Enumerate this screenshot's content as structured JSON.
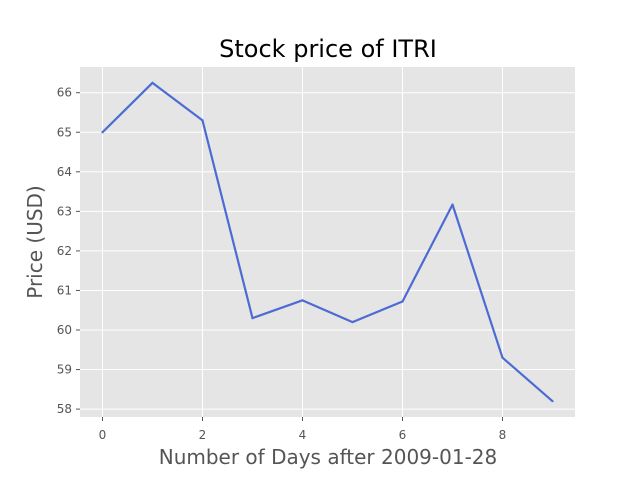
{
  "chart_data": {
    "type": "line",
    "title": "Stock price of ITRI",
    "xlabel": "Number of Days after 2009-01-28",
    "ylabel": "Price (USD)",
    "x": [
      0,
      1,
      2,
      3,
      4,
      5,
      6,
      7,
      8,
      9
    ],
    "series": [
      {
        "values": [
          65.0,
          66.25,
          65.3,
          60.3,
          60.75,
          60.2,
          60.72,
          63.17,
          59.3,
          58.2
        ],
        "color": "#4c6bd4"
      }
    ],
    "xlim": [
      -0.45,
      9.45
    ],
    "ylim": [
      57.8,
      66.65
    ],
    "xticks": [
      "0",
      "2",
      "4",
      "6",
      "8"
    ],
    "yticks": [
      "58",
      "59",
      "60",
      "61",
      "62",
      "63",
      "64",
      "65",
      "66"
    ],
    "grid": true,
    "style": {
      "plot_background": "#e5e5e5",
      "grid_color": "#ffffff"
    }
  }
}
